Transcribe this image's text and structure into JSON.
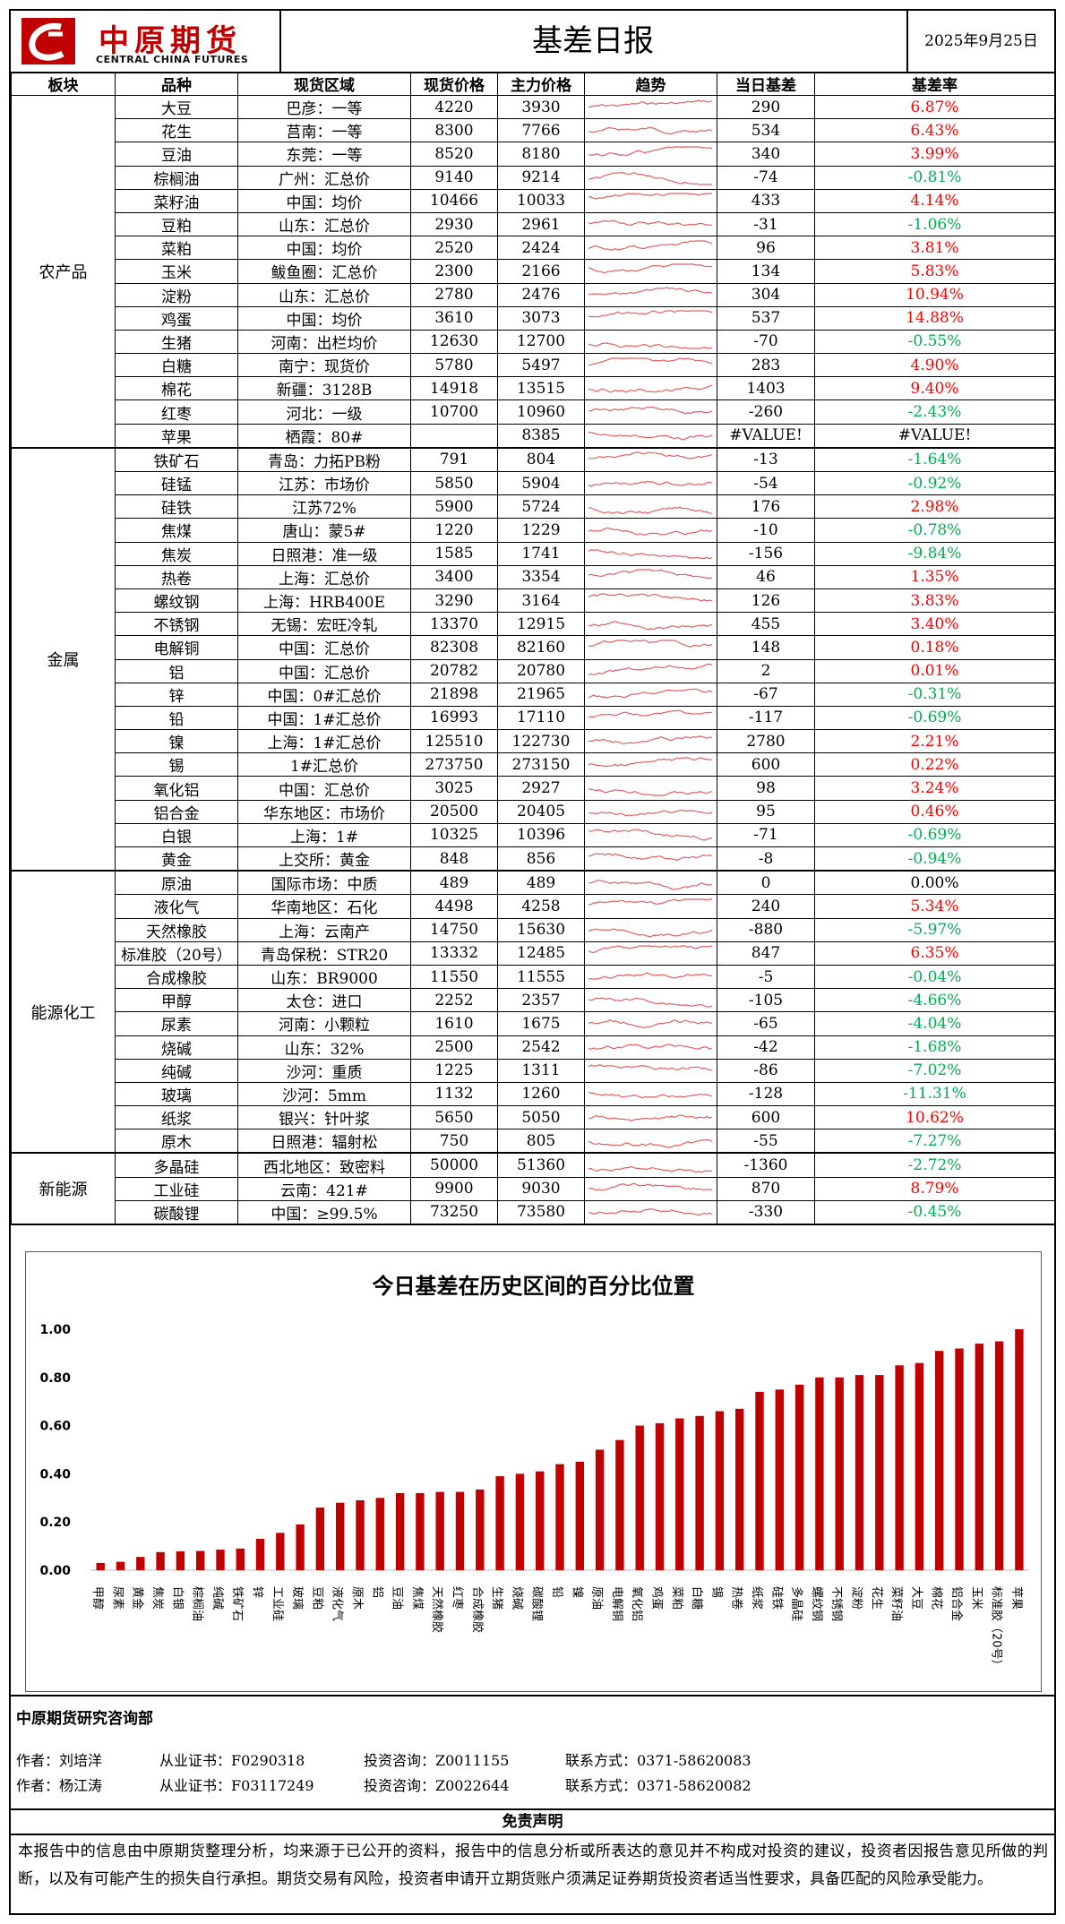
{
  "header": {
    "logo_cn": "中原期货",
    "logo_en": "CENTRAL CHINA FUTURES",
    "title": "基差日报",
    "date": "2025年9月25日"
  },
  "columns": [
    "板块",
    "品种",
    "现货区域",
    "现货价格",
    "主力价格",
    "趋势",
    "当日基差",
    "基差率"
  ],
  "sections": [
    {
      "name": "农产品",
      "rows": [
        {
          "variety": "大豆",
          "region": "巴彦：一等",
          "spot": "4220",
          "main": "3930",
          "basis": "290",
          "rate": "6.87%",
          "sign": "pos"
        },
        {
          "variety": "花生",
          "region": "莒南：一等",
          "spot": "8300",
          "main": "7766",
          "basis": "534",
          "rate": "6.43%",
          "sign": "pos"
        },
        {
          "variety": "豆油",
          "region": "东莞：一等",
          "spot": "8520",
          "main": "8180",
          "basis": "340",
          "rate": "3.99%",
          "sign": "pos"
        },
        {
          "variety": "棕榈油",
          "region": "广州：汇总价",
          "spot": "9140",
          "main": "9214",
          "basis": "-74",
          "rate": "-0.81%",
          "sign": "neg"
        },
        {
          "variety": "菜籽油",
          "region": "中国：均价",
          "spot": "10466",
          "main": "10033",
          "basis": "433",
          "rate": "4.14%",
          "sign": "pos"
        },
        {
          "variety": "豆粕",
          "region": "山东：汇总价",
          "spot": "2930",
          "main": "2961",
          "basis": "-31",
          "rate": "-1.06%",
          "sign": "neg"
        },
        {
          "variety": "菜粕",
          "region": "中国：均价",
          "spot": "2520",
          "main": "2424",
          "basis": "96",
          "rate": "3.81%",
          "sign": "pos"
        },
        {
          "variety": "玉米",
          "region": "鲅鱼圈：汇总价",
          "spot": "2300",
          "main": "2166",
          "basis": "134",
          "rate": "5.83%",
          "sign": "pos"
        },
        {
          "variety": "淀粉",
          "region": "山东：汇总价",
          "spot": "2780",
          "main": "2476",
          "basis": "304",
          "rate": "10.94%",
          "sign": "pos"
        },
        {
          "variety": "鸡蛋",
          "region": "中国：均价",
          "spot": "3610",
          "main": "3073",
          "basis": "537",
          "rate": "14.88%",
          "sign": "pos"
        },
        {
          "variety": "生猪",
          "region": "河南：出栏均价",
          "spot": "12630",
          "main": "12700",
          "basis": "-70",
          "rate": "-0.55%",
          "sign": "neg"
        },
        {
          "variety": "白糖",
          "region": "南宁：现货价",
          "spot": "5780",
          "main": "5497",
          "basis": "283",
          "rate": "4.90%",
          "sign": "pos"
        },
        {
          "variety": "棉花",
          "region": "新疆：3128B",
          "spot": "14918",
          "main": "13515",
          "basis": "1403",
          "rate": "9.40%",
          "sign": "pos"
        },
        {
          "variety": "红枣",
          "region": "河北：一级",
          "spot": "10700",
          "main": "10960",
          "basis": "-260",
          "rate": "-2.43%",
          "sign": "neg"
        },
        {
          "variety": "苹果",
          "region": "栖霞：80#",
          "spot": "",
          "main": "8385",
          "basis": "#VALUE!",
          "rate": "#VALUE!",
          "sign": "zero"
        }
      ]
    },
    {
      "name": "金属",
      "rows": [
        {
          "variety": "铁矿石",
          "region": "青岛：力拓PB粉",
          "spot": "791",
          "main": "804",
          "basis": "-13",
          "rate": "-1.64%",
          "sign": "neg"
        },
        {
          "variety": "硅锰",
          "region": "江苏：市场价",
          "spot": "5850",
          "main": "5904",
          "basis": "-54",
          "rate": "-0.92%",
          "sign": "neg"
        },
        {
          "variety": "硅铁",
          "region": "江苏72%",
          "spot": "5900",
          "main": "5724",
          "basis": "176",
          "rate": "2.98%",
          "sign": "pos"
        },
        {
          "variety": "焦煤",
          "region": "唐山：蒙5#",
          "spot": "1220",
          "main": "1229",
          "basis": "-10",
          "rate": "-0.78%",
          "sign": "neg"
        },
        {
          "variety": "焦炭",
          "region": "日照港：准一级",
          "spot": "1585",
          "main": "1741",
          "basis": "-156",
          "rate": "-9.84%",
          "sign": "neg"
        },
        {
          "variety": "热卷",
          "region": "上海：汇总价",
          "spot": "3400",
          "main": "3354",
          "basis": "46",
          "rate": "1.35%",
          "sign": "pos"
        },
        {
          "variety": "螺纹钢",
          "region": "上海：HRB400E",
          "spot": "3290",
          "main": "3164",
          "basis": "126",
          "rate": "3.83%",
          "sign": "pos"
        },
        {
          "variety": "不锈钢",
          "region": "无锡：宏旺冷轧",
          "spot": "13370",
          "main": "12915",
          "basis": "455",
          "rate": "3.40%",
          "sign": "pos"
        },
        {
          "variety": "电解铜",
          "region": "中国：汇总价",
          "spot": "82308",
          "main": "82160",
          "basis": "148",
          "rate": "0.18%",
          "sign": "pos"
        },
        {
          "variety": "铝",
          "region": "中国：汇总价",
          "spot": "20782",
          "main": "20780",
          "basis": "2",
          "rate": "0.01%",
          "sign": "pos"
        },
        {
          "variety": "锌",
          "region": "中国：0#汇总价",
          "spot": "21898",
          "main": "21965",
          "basis": "-67",
          "rate": "-0.31%",
          "sign": "neg"
        },
        {
          "variety": "铅",
          "region": "中国：1#汇总价",
          "spot": "16993",
          "main": "17110",
          "basis": "-117",
          "rate": "-0.69%",
          "sign": "neg"
        },
        {
          "variety": "镍",
          "region": "上海：1#汇总价",
          "spot": "125510",
          "main": "122730",
          "basis": "2780",
          "rate": "2.21%",
          "sign": "pos"
        },
        {
          "variety": "锡",
          "region": "1#汇总价",
          "spot": "273750",
          "main": "273150",
          "basis": "600",
          "rate": "0.22%",
          "sign": "pos"
        },
        {
          "variety": "氧化铝",
          "region": "中国：汇总价",
          "spot": "3025",
          "main": "2927",
          "basis": "98",
          "rate": "3.24%",
          "sign": "pos"
        },
        {
          "variety": "铝合金",
          "region": "华东地区：市场价",
          "spot": "20500",
          "main": "20405",
          "basis": "95",
          "rate": "0.46%",
          "sign": "pos"
        },
        {
          "variety": "白银",
          "region": "上海：1#",
          "spot": "10325",
          "main": "10396",
          "basis": "-71",
          "rate": "-0.69%",
          "sign": "neg"
        },
        {
          "variety": "黄金",
          "region": "上交所：黄金",
          "spot": "848",
          "main": "856",
          "basis": "-8",
          "rate": "-0.94%",
          "sign": "neg"
        }
      ]
    },
    {
      "name": "能源化工",
      "rows": [
        {
          "variety": "原油",
          "region": "国际市场：中质",
          "spot": "489",
          "main": "489",
          "basis": "0",
          "rate": "0.00%",
          "sign": "zero"
        },
        {
          "variety": "液化气",
          "region": "华南地区：石化",
          "spot": "4498",
          "main": "4258",
          "basis": "240",
          "rate": "5.34%",
          "sign": "pos"
        },
        {
          "variety": "天然橡胶",
          "region": "上海：云南产",
          "spot": "14750",
          "main": "15630",
          "basis": "-880",
          "rate": "-5.97%",
          "sign": "neg"
        },
        {
          "variety": "标准胶（20号）",
          "region": "青岛保税：STR20",
          "spot": "13332",
          "main": "12485",
          "basis": "847",
          "rate": "6.35%",
          "sign": "pos"
        },
        {
          "variety": "合成橡胶",
          "region": "山东：BR9000",
          "spot": "11550",
          "main": "11555",
          "basis": "-5",
          "rate": "-0.04%",
          "sign": "neg"
        },
        {
          "variety": "甲醇",
          "region": "太仓：进口",
          "spot": "2252",
          "main": "2357",
          "basis": "-105",
          "rate": "-4.66%",
          "sign": "neg"
        },
        {
          "variety": "尿素",
          "region": "河南：小颗粒",
          "spot": "1610",
          "main": "1675",
          "basis": "-65",
          "rate": "-4.04%",
          "sign": "neg"
        },
        {
          "variety": "烧碱",
          "region": "山东：32%",
          "spot": "2500",
          "main": "2542",
          "basis": "-42",
          "rate": "-1.68%",
          "sign": "neg"
        },
        {
          "variety": "纯碱",
          "region": "沙河：重质",
          "spot": "1225",
          "main": "1311",
          "basis": "-86",
          "rate": "-7.02%",
          "sign": "neg"
        },
        {
          "variety": "玻璃",
          "region": "沙河：5mm",
          "spot": "1132",
          "main": "1260",
          "basis": "-128",
          "rate": "-11.31%",
          "sign": "neg"
        },
        {
          "variety": "纸浆",
          "region": "银兴：针叶浆",
          "spot": "5650",
          "main": "5050",
          "basis": "600",
          "rate": "10.62%",
          "sign": "pos"
        },
        {
          "variety": "原木",
          "region": "日照港：辐射松",
          "spot": "750",
          "main": "805",
          "basis": "-55",
          "rate": "-7.27%",
          "sign": "neg"
        }
      ]
    },
    {
      "name": "新能源",
      "rows": [
        {
          "variety": "多晶硅",
          "region": "西北地区：致密料",
          "spot": "50000",
          "main": "51360",
          "basis": "-1360",
          "rate": "-2.72%",
          "sign": "neg"
        },
        {
          "variety": "工业硅",
          "region": "云南：421#",
          "spot": "9900",
          "main": "9030",
          "basis": "870",
          "rate": "8.79%",
          "sign": "pos"
        },
        {
          "variety": "碳酸锂",
          "region": "中国：≥99.5%",
          "spot": "73250",
          "main": "73580",
          "basis": "-330",
          "rate": "-0.45%",
          "sign": "neg"
        }
      ]
    }
  ],
  "colors": {
    "positive": "#ff0000",
    "negative": "#00b050",
    "bar": "#c00000",
    "sparkline": "#e06060",
    "brand": "#c00000"
  },
  "chart_data": {
    "type": "bar",
    "title": "今日基差在历史区间的百分比位置",
    "ylim": [
      0,
      1
    ],
    "yticks": [
      "0.00",
      "0.20",
      "0.40",
      "0.60",
      "0.80",
      "1.00"
    ],
    "categories": [
      "甲醇",
      "尿素",
      "黄金",
      "焦炭",
      "白银",
      "棕榈油",
      "纯碱",
      "铁矿石",
      "锌",
      "工业硅",
      "玻璃",
      "豆粕",
      "液化气",
      "原木",
      "铝",
      "豆油",
      "焦煤",
      "天然橡胶",
      "红枣",
      "合成橡胶",
      "生猪",
      "烧碱",
      "碳酸锂",
      "铅",
      "镍",
      "原油",
      "电解铜",
      "氧化铝",
      "鸡蛋",
      "菜粕",
      "白糖",
      "锡",
      "热卷",
      "纸浆",
      "硅铁",
      "多晶硅",
      "螺纹钢",
      "不锈钢",
      "淀粉",
      "花生",
      "菜籽油",
      "大豆",
      "棉花",
      "铝合金",
      "玉米",
      "标准胶（20号）",
      "苹果"
    ],
    "values": [
      0.03,
      0.035,
      0.055,
      0.075,
      0.078,
      0.08,
      0.085,
      0.09,
      0.13,
      0.155,
      0.19,
      0.26,
      0.28,
      0.29,
      0.3,
      0.32,
      0.32,
      0.325,
      0.325,
      0.335,
      0.39,
      0.4,
      0.41,
      0.44,
      0.45,
      0.5,
      0.54,
      0.6,
      0.61,
      0.63,
      0.64,
      0.66,
      0.67,
      0.74,
      0.75,
      0.77,
      0.8,
      0.8,
      0.81,
      0.81,
      0.85,
      0.86,
      0.91,
      0.92,
      0.94,
      0.95,
      1.0
    ]
  },
  "footer": {
    "dept": "中原期货研究咨询部",
    "authors": [
      {
        "author": "作者：刘培洋",
        "cert": "从业证书：F0290318",
        "consult": "投资咨询：Z0011155",
        "contact": "联系方式：0371-58620083"
      },
      {
        "author": "作者：杨江涛",
        "cert": "从业证书：F03117249",
        "consult": "投资咨询：Z0022644",
        "contact": "联系方式：0371-58620082"
      }
    ],
    "disclaimer_title": "免责声明",
    "disclaimer": "本报告中的信息由中原期货整理分析，均来源于已公开的资料，报告中的信息分析或所表达的意见并不构成对投资的建议，投资者因报告意见所做的判断，以及有可能产生的损失自行承担。期货交易有风险，投资者申请开立期货账户须满足证券期货投资者适当性要求，具备匹配的风险承受能力。"
  }
}
